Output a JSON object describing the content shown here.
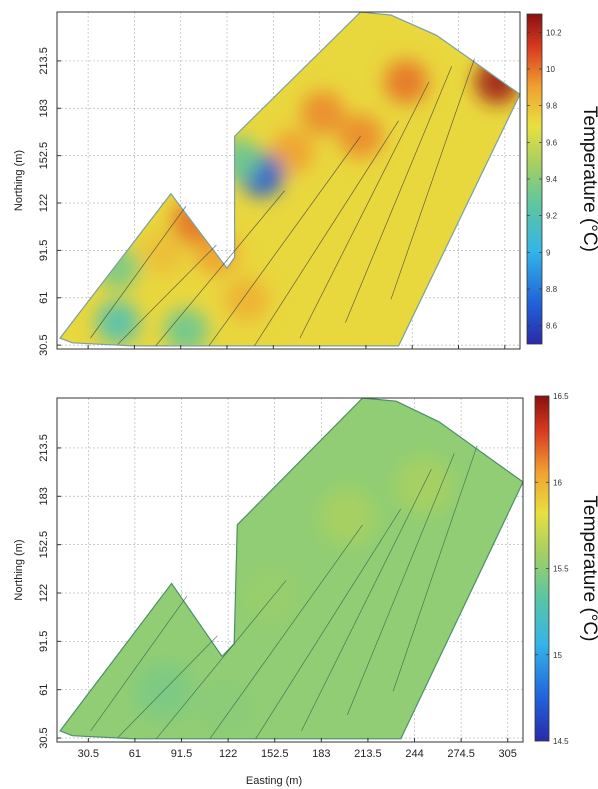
{
  "chart_data": [
    {
      "type": "heatmap",
      "panel": "top",
      "title": "",
      "ylabel": "Northing (m)",
      "xlabel": "",
      "x_ticks": [
        30.5,
        61,
        91.5,
        122,
        152.5,
        183,
        213.5,
        244,
        274.5,
        305
      ],
      "x_tick_labels": [],
      "y_ticks": [
        30.5,
        61,
        91.5,
        122,
        152.5,
        183,
        213.5
      ],
      "y_tick_labels": [
        "30.5",
        "61",
        "91.5",
        "122",
        "152.5",
        "183",
        "213.5"
      ],
      "xlim": [
        10,
        315
      ],
      "ylim": [
        28,
        245
      ],
      "grid": true,
      "colorbar": {
        "label": "Temperature (°C)",
        "range": [
          8.5,
          10.3
        ],
        "ticks": [
          8.6,
          8.8,
          9,
          9.2,
          9.4,
          9.6,
          9.8,
          10,
          10.2
        ],
        "tick_labels": [
          "8.6",
          "8.8",
          "9",
          "9.2",
          "9.4",
          "9.6",
          "9.8",
          "10",
          "10.2"
        ],
        "colormap": "jet"
      },
      "boundary": [
        [
          12,
          35
        ],
        [
          85,
          128
        ],
        [
          122,
          80
        ],
        [
          127,
          87
        ],
        [
          127,
          165
        ],
        [
          210,
          245
        ],
        [
          230,
          243
        ],
        [
          260,
          230
        ],
        [
          315,
          192
        ],
        [
          235,
          30
        ],
        [
          154,
          30
        ],
        [
          60,
          30
        ],
        [
          20,
          32
        ]
      ],
      "transects": [
        [
          [
            32,
            35
          ],
          [
            95,
            120
          ]
        ],
        [
          [
            50,
            31
          ],
          [
            115,
            95
          ]
        ],
        [
          [
            75,
            30
          ],
          [
            160,
            130
          ]
        ],
        [
          [
            110,
            30
          ],
          [
            210,
            165
          ]
        ],
        [
          [
            140,
            30
          ],
          [
            235,
            175
          ]
        ],
        [
          [
            170,
            35
          ],
          [
            255,
            200
          ]
        ],
        [
          [
            200,
            45
          ],
          [
            270,
            210
          ]
        ],
        [
          [
            230,
            60
          ],
          [
            285,
            215
          ]
        ]
      ],
      "hotspots": [
        {
          "x": 185,
          "y": 180,
          "value": 9.95
        },
        {
          "x": 165,
          "y": 155,
          "value": 9.9
        },
        {
          "x": 210,
          "y": 165,
          "value": 9.95
        },
        {
          "x": 240,
          "y": 200,
          "value": 10.0
        },
        {
          "x": 300,
          "y": 200,
          "value": 10.25
        },
        {
          "x": 115,
          "y": 90,
          "value": 9.9
        },
        {
          "x": 100,
          "y": 110,
          "value": 10.0
        },
        {
          "x": 135,
          "y": 60,
          "value": 9.85
        },
        {
          "x": 80,
          "y": 90,
          "value": 9.8
        },
        {
          "x": 145,
          "y": 140,
          "value": 8.7
        },
        {
          "x": 50,
          "y": 45,
          "value": 9.2
        },
        {
          "x": 130,
          "y": 150,
          "value": 9.3
        },
        {
          "x": 50,
          "y": 80,
          "value": 9.35
        },
        {
          "x": 95,
          "y": 40,
          "value": 9.3
        }
      ]
    },
    {
      "type": "heatmap",
      "panel": "bottom",
      "title": "",
      "ylabel": "Northing (m)",
      "xlabel": "Easting (m)",
      "x_ticks": [
        30.5,
        61,
        91.5,
        122,
        152.5,
        183,
        213.5,
        244,
        274.5,
        305
      ],
      "x_tick_labels": [
        "30.5",
        "61",
        "91.5",
        "122",
        "152.5",
        "183",
        "213.5",
        "244",
        "274.5",
        "305"
      ],
      "y_ticks": [
        30.5,
        61,
        91.5,
        122,
        152.5,
        183,
        213.5
      ],
      "y_tick_labels": [
        "30.5",
        "61",
        "91.5",
        "122",
        "152.5",
        "183",
        "213.5"
      ],
      "xlim": [
        10,
        315
      ],
      "ylim": [
        28,
        245
      ],
      "grid": true,
      "colorbar": {
        "label": "Temperature (°C)",
        "range": [
          14.5,
          16.5
        ],
        "ticks": [
          14.5,
          15,
          15.5,
          16,
          16.5
        ],
        "tick_labels": [
          "14.5",
          "15",
          "15.5",
          "16",
          "16.5"
        ],
        "colormap": "jet"
      },
      "boundary": [
        [
          12,
          35
        ],
        [
          85,
          128
        ],
        [
          118,
          82
        ],
        [
          126,
          90
        ],
        [
          128,
          165
        ],
        [
          210,
          245
        ],
        [
          232,
          243
        ],
        [
          260,
          230
        ],
        [
          315,
          192
        ],
        [
          235,
          30
        ],
        [
          154,
          30
        ],
        [
          60,
          30
        ],
        [
          20,
          32
        ]
      ],
      "transects": [
        [
          [
            32,
            35
          ],
          [
            95,
            120
          ]
        ],
        [
          [
            50,
            31
          ],
          [
            115,
            95
          ]
        ],
        [
          [
            75,
            30
          ],
          [
            160,
            130
          ]
        ],
        [
          [
            110,
            30
          ],
          [
            210,
            165
          ]
        ],
        [
          [
            140,
            30
          ],
          [
            235,
            175
          ]
        ],
        [
          [
            170,
            35
          ],
          [
            255,
            200
          ]
        ],
        [
          [
            200,
            45
          ],
          [
            270,
            210
          ]
        ],
        [
          [
            230,
            60
          ],
          [
            285,
            215
          ]
        ]
      ],
      "hotspots": [
        {
          "x": 150,
          "y": 120,
          "value": 15.55
        },
        {
          "x": 200,
          "y": 170,
          "value": 15.6
        },
        {
          "x": 80,
          "y": 60,
          "value": 15.45
        },
        {
          "x": 250,
          "y": 190,
          "value": 15.6
        },
        {
          "x": 120,
          "y": 50,
          "value": 15.5
        }
      ]
    }
  ]
}
